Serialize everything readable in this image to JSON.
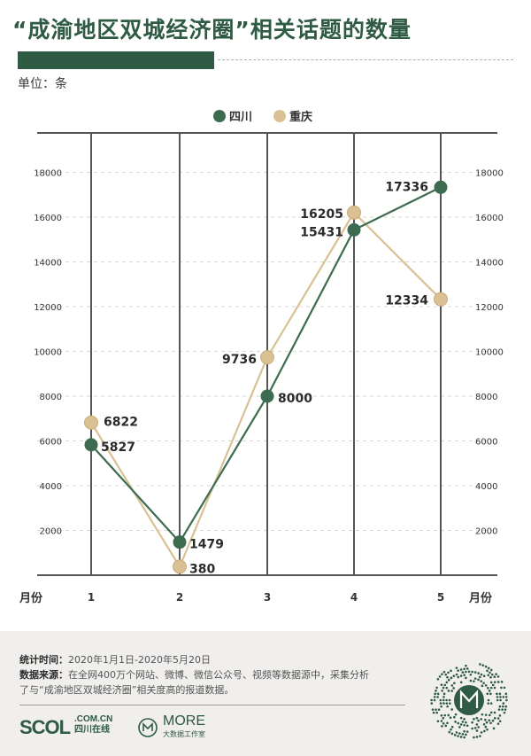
{
  "title": "“成渝地区双城经济圈”相关话题的数量",
  "unit_label": "单位：条",
  "footer": {
    "time_label": "统计时间：",
    "time_value": "2020年1月1日-2020年5月20日",
    "source_label": "数据来源：",
    "source_value_line1": "在全网400万个网站、微博、微信公众号、视频等数据源中，采集分析",
    "source_value_line2": "了与“成渝地区双城经济圈”相关度高的报道数据。",
    "logo_scol": "SCOL",
    "logo_scol_domain": ".COM.CN",
    "logo_scol_cn": "四川在线",
    "logo_more": "MORE",
    "logo_more_cn": "大数据工作室"
  },
  "colors": {
    "sichuan": "#3d6b4f",
    "chongqing": "#d9c194",
    "title": "#2f5a43"
  },
  "chart_data": {
    "type": "line",
    "categories": [
      "1",
      "2",
      "3",
      "4",
      "5"
    ],
    "xlabel": "月份",
    "ylim": [
      0,
      19000
    ],
    "yticks": [
      2000,
      4000,
      6000,
      8000,
      10000,
      12000,
      14000,
      16000,
      18000
    ],
    "legend_position": "top-center",
    "grid": true,
    "series": [
      {
        "name": "四川",
        "color": "#3d6b4f",
        "values": [
          5827,
          1479,
          8000,
          15431,
          17336
        ]
      },
      {
        "name": "重庆",
        "color": "#d9c194",
        "values": [
          6822,
          380,
          9736,
          16205,
          12334
        ]
      }
    ]
  }
}
